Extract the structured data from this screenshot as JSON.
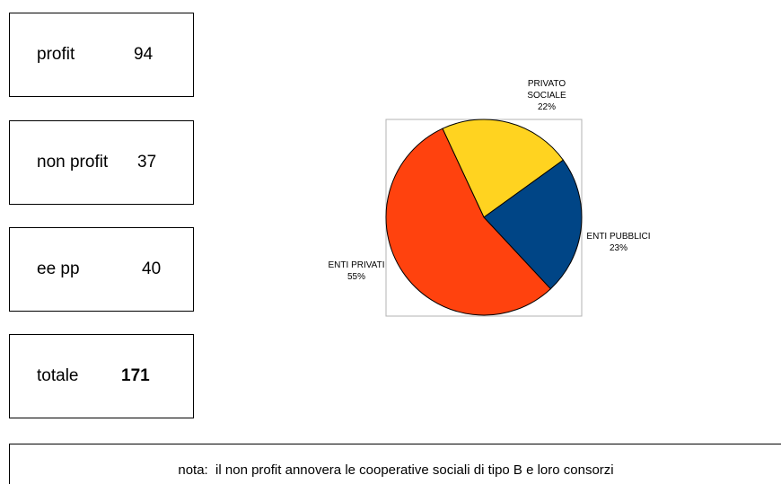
{
  "stats": [
    {
      "label": "profit",
      "value": "94"
    },
    {
      "label": "non profit",
      "value": "37"
    },
    {
      "label": "ee pp",
      "value": "40"
    },
    {
      "label": "totale",
      "value": "171"
    }
  ],
  "chart_data": {
    "type": "pie",
    "slices": [
      {
        "label": [
          "PRIVATO",
          "SOCIALE"
        ],
        "value": 22,
        "pct": "22%",
        "color": "#ffd320"
      },
      {
        "label": [
          "ENTI PUBBLICI"
        ],
        "value": 23,
        "pct": "23%",
        "color": "#004586"
      },
      {
        "label": [
          "ENTI PRIVATI"
        ],
        "value": 55,
        "pct": "55%",
        "color": "#ff420e"
      }
    ],
    "start_angle_deg": -25,
    "direction": "clockwise",
    "legend": "none",
    "plot_frame": true,
    "title": ""
  },
  "note": "nota:  il non profit annovera le cooperative sociali di tipo B e loro consorzi"
}
